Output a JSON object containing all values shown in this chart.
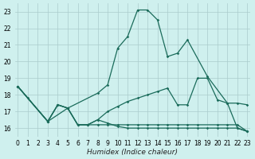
{
  "xlabel": "Humidex (Indice chaleur)",
  "background_color": "#cff0ee",
  "grid_color": "#aacccc",
  "line_color": "#1a6b5a",
  "xlim": [
    -0.3,
    23.3
  ],
  "ylim": [
    15.5,
    23.5
  ],
  "yticks": [
    16,
    17,
    18,
    19,
    20,
    21,
    22,
    23
  ],
  "xticks": [
    0,
    1,
    2,
    3,
    4,
    5,
    6,
    7,
    8,
    9,
    10,
    11,
    12,
    13,
    14,
    15,
    16,
    17,
    18,
    19,
    20,
    21,
    22,
    23
  ],
  "line1_x": [
    0,
    1,
    3,
    5,
    8,
    9,
    10,
    11,
    12,
    13,
    14,
    15,
    16,
    17,
    19,
    21,
    22,
    23
  ],
  "line1_y": [
    18.5,
    17.8,
    16.4,
    17.2,
    18.1,
    18.6,
    20.8,
    21.5,
    23.1,
    23.1,
    22.5,
    20.3,
    20.5,
    21.3,
    19.1,
    17.5,
    16.0,
    15.8
  ],
  "line2_x": [
    0,
    3,
    4,
    5,
    6,
    7,
    8,
    9,
    10,
    11,
    12,
    13,
    14,
    15,
    16,
    17,
    18,
    19,
    20,
    21,
    22,
    23
  ],
  "line2_y": [
    18.5,
    16.4,
    17.4,
    17.2,
    16.2,
    16.2,
    16.5,
    17.0,
    17.3,
    17.6,
    17.8,
    18.0,
    18.2,
    18.4,
    17.4,
    17.4,
    19.0,
    19.0,
    17.7,
    17.5,
    17.5,
    17.4
  ],
  "line3_x": [
    0,
    3,
    4,
    5,
    6,
    7,
    8,
    9,
    10,
    11,
    12,
    13,
    14,
    15,
    16,
    17,
    18,
    19,
    20,
    21,
    22,
    23
  ],
  "line3_y": [
    18.5,
    16.4,
    17.4,
    17.2,
    16.2,
    16.2,
    16.5,
    16.3,
    16.1,
    16.0,
    16.0,
    16.0,
    16.0,
    16.0,
    16.0,
    16.0,
    16.0,
    16.0,
    16.0,
    16.0,
    16.0,
    15.8
  ],
  "line4_x": [
    0,
    3,
    4,
    5,
    6,
    7,
    8,
    9,
    10,
    11,
    12,
    13,
    14,
    15,
    16,
    17,
    18,
    20,
    21,
    22,
    23
  ],
  "line4_y": [
    18.5,
    16.4,
    17.4,
    17.2,
    16.2,
    16.2,
    16.2,
    16.2,
    16.2,
    16.2,
    16.2,
    16.2,
    16.2,
    16.2,
    16.2,
    16.2,
    16.2,
    16.2,
    16.2,
    16.2,
    15.8
  ]
}
